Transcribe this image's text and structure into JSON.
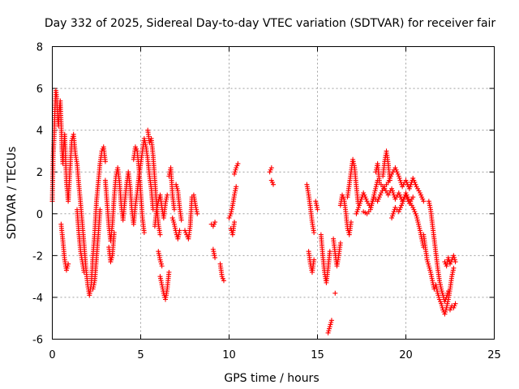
{
  "chart_data": {
    "type": "scatter",
    "title": "Day 332 of 2025, Sidereal Day-to-day VTEC variation (SDTVAR) for receiver fair",
    "xlabel": "GPS time / hours",
    "ylabel": "SDTVAR / TECUs",
    "xlim": [
      0,
      25
    ],
    "ylim": [
      -6,
      8
    ],
    "xticks": [
      "0",
      "5",
      "10",
      "15",
      "20",
      "25"
    ],
    "yticks": [
      "-6",
      "-4",
      "-2",
      "0",
      "2",
      "4",
      "6",
      "8"
    ],
    "grid": true,
    "marker": "+",
    "series": [
      {
        "name": "SDTVAR",
        "color": "#ff0000",
        "segments": [
          {
            "x": [
              0.0,
              0.05,
              0.1,
              0.15,
              0.2,
              0.25,
              0.3,
              0.35,
              0.4,
              0.45,
              0.5,
              0.55,
              0.6,
              0.65,
              0.7,
              0.75,
              0.8,
              0.9,
              1.0,
              1.1,
              1.2,
              1.3,
              1.4,
              1.5,
              1.6,
              1.7,
              1.8,
              1.9,
              2.0,
              2.1,
              2.2,
              2.3,
              2.4,
              2.5,
              2.6,
              2.7,
              2.8,
              2.9,
              3.0
            ],
            "y": [
              0.6,
              2.8,
              3.6,
              5.0,
              5.9,
              5.6,
              4.6,
              4.2,
              5.0,
              5.4,
              4.3,
              3.0,
              2.4,
              3.3,
              3.8,
              2.6,
              1.5,
              0.6,
              2.1,
              3.5,
              3.8,
              2.9,
              2.4,
              1.4,
              0.5,
              -0.5,
              -1.5,
              -2.6,
              -3.4,
              -3.9,
              -3.4,
              -2.0,
              -0.9,
              0.6,
              1.5,
              2.4,
              3.0,
              3.2,
              2.5
            ]
          },
          {
            "x": [
              0.5,
              0.6,
              0.7,
              0.8,
              0.9
            ],
            "y": [
              -0.5,
              -1.3,
              -2.2,
              -2.7,
              -2.4
            ]
          },
          {
            "x": [
              1.4,
              1.5,
              1.6,
              1.7,
              1.8
            ],
            "y": [
              0.2,
              -0.9,
              -1.8,
              -2.3,
              -2.8
            ]
          },
          {
            "x": [
              2.3,
              2.4,
              2.5,
              2.6,
              2.7
            ],
            "y": [
              -3.6,
              -3.2,
              -2.1,
              -1.0,
              0.2
            ]
          },
          {
            "x": [
              3.0,
              3.1,
              3.2,
              3.3,
              3.4,
              3.5,
              3.6,
              3.7,
              3.8,
              3.9,
              4.0,
              4.1,
              4.2,
              4.3,
              4.4,
              4.5,
              4.6,
              4.7,
              4.8,
              4.9,
              5.0,
              5.1,
              5.2,
              5.3,
              5.4,
              5.5,
              5.6,
              5.7
            ],
            "y": [
              1.6,
              0.5,
              -0.6,
              -1.3,
              -0.5,
              0.8,
              1.8,
              2.2,
              1.5,
              0.4,
              -0.3,
              0.6,
              1.4,
              2.0,
              1.3,
              0.2,
              -0.5,
              0.4,
              1.0,
              1.8,
              2.4,
              3.0,
              3.6,
              3.2,
              2.6,
              1.8,
              1.2,
              0.2
            ]
          },
          {
            "x": [
              3.2,
              3.3,
              3.4,
              3.5
            ],
            "y": [
              -1.6,
              -2.3,
              -2.0,
              -0.9
            ]
          },
          {
            "x": [
              4.6,
              4.7,
              4.8,
              4.9,
              5.0,
              5.1,
              5.2
            ],
            "y": [
              2.6,
              3.2,
              3.0,
              2.2,
              1.0,
              -0.2,
              -0.9
            ]
          },
          {
            "x": [
              5.4,
              5.5,
              5.6,
              5.7,
              5.8,
              5.9,
              6.0,
              6.1
            ],
            "y": [
              4.0,
              3.4,
              3.6,
              2.8,
              1.6,
              0.4,
              -0.5,
              -1.0
            ]
          },
          {
            "x": [
              5.8,
              5.9,
              6.0,
              6.1,
              6.2,
              6.3,
              6.4,
              6.5
            ],
            "y": [
              -0.6,
              0.2,
              0.6,
              0.9,
              0.3,
              -0.2,
              0.5,
              0.9
            ]
          },
          {
            "x": [
              6.0,
              6.1,
              6.2
            ],
            "y": [
              -1.8,
              -2.2,
              -2.5
            ]
          },
          {
            "x": [
              6.1,
              6.2,
              6.3,
              6.4,
              6.5,
              6.6
            ],
            "y": [
              -3.0,
              -3.4,
              -3.8,
              -4.1,
              -3.6,
              -2.8
            ]
          },
          {
            "x": [
              6.6,
              6.7,
              6.8,
              6.9
            ],
            "y": [
              1.8,
              2.2,
              0.9,
              0.2
            ]
          },
          {
            "x": [
              6.8,
              6.9,
              7.0,
              7.1,
              7.2
            ],
            "y": [
              -0.2,
              -0.5,
              -0.9,
              -1.2,
              -0.8
            ]
          },
          {
            "x": [
              7.0,
              7.1,
              7.2,
              7.3
            ],
            "y": [
              1.4,
              1.1,
              0.3,
              -0.3
            ]
          },
          {
            "x": [
              7.5,
              7.6,
              7.7,
              7.8,
              7.9
            ],
            "y": [
              -0.8,
              -1.0,
              -1.2,
              -0.6,
              0.8
            ]
          },
          {
            "x": [
              8.0,
              8.1,
              8.2
            ],
            "y": [
              0.9,
              0.4,
              0.0
            ]
          },
          {
            "x": [
              9.0,
              9.1,
              9.2
            ],
            "y": [
              -0.5,
              -0.6,
              -0.4
            ]
          },
          {
            "x": [
              9.1,
              9.2
            ],
            "y": [
              -1.7,
              -2.1
            ]
          },
          {
            "x": [
              9.5,
              9.6,
              9.7
            ],
            "y": [
              -2.4,
              -3.0,
              -3.2
            ]
          },
          {
            "x": [
              10.0,
              10.1,
              10.2,
              10.3,
              10.4
            ],
            "y": [
              -0.2,
              0.0,
              0.4,
              0.9,
              1.3
            ]
          },
          {
            "x": [
              10.1,
              10.2,
              10.3
            ],
            "y": [
              -0.7,
              -1.0,
              -0.4
            ]
          },
          {
            "x": [
              10.3,
              10.4,
              10.5
            ],
            "y": [
              1.9,
              2.2,
              2.4
            ]
          },
          {
            "x": [
              12.3,
              12.4
            ],
            "y": [
              2.0,
              2.2
            ]
          },
          {
            "x": [
              12.4,
              12.5
            ],
            "y": [
              1.6,
              1.4
            ]
          },
          {
            "x": [
              14.4,
              14.5,
              14.6,
              14.7,
              14.8
            ],
            "y": [
              1.4,
              0.9,
              0.3,
              -0.4,
              -0.9
            ]
          },
          {
            "x": [
              14.5,
              14.6,
              14.7,
              14.8
            ],
            "y": [
              -1.8,
              -2.4,
              -2.8,
              -2.2
            ]
          },
          {
            "x": [
              14.9,
              15.0
            ],
            "y": [
              0.6,
              0.2
            ]
          },
          {
            "x": [
              15.2,
              15.3,
              15.4,
              15.5,
              15.6,
              15.7
            ],
            "y": [
              -1.0,
              -2.0,
              -2.8,
              -3.3,
              -2.6,
              -1.8
            ]
          },
          {
            "x": [
              15.6,
              15.7,
              15.8
            ],
            "y": [
              -5.7,
              -5.4,
              -5.1
            ]
          },
          {
            "x": [
              15.9,
              16.0,
              16.1,
              16.2,
              16.3
            ],
            "y": [
              -1.2,
              -1.9,
              -2.5,
              -2.0,
              -1.4
            ]
          },
          {
            "x": [
              16.0
            ],
            "y": [
              -3.8
            ]
          },
          {
            "x": [
              16.3,
              16.4,
              16.5,
              16.6,
              16.7,
              16.8,
              16.9
            ],
            "y": [
              0.4,
              0.9,
              0.7,
              0.1,
              -0.7,
              -1.0,
              -0.4
            ]
          },
          {
            "x": [
              16.7,
              16.8,
              16.9,
              17.0,
              17.1,
              17.2,
              17.3
            ],
            "y": [
              0.8,
              1.4,
              2.0,
              2.6,
              2.2,
              1.3,
              0.5
            ]
          },
          {
            "x": [
              17.2,
              17.4,
              17.6,
              17.8,
              18.0,
              18.2,
              18.4,
              18.6,
              18.8,
              19.0,
              19.2,
              19.4,
              19.6,
              19.8,
              20.0,
              20.2,
              20.4,
              20.6,
              20.8,
              21.0
            ],
            "y": [
              0.0,
              0.5,
              1.0,
              0.6,
              0.3,
              0.8,
              0.6,
              1.0,
              1.3,
              1.5,
              1.9,
              2.2,
              1.8,
              1.3,
              1.6,
              1.2,
              1.7,
              1.3,
              1.0,
              0.6
            ]
          },
          {
            "x": [
              17.6,
              17.8,
              18.0,
              18.2,
              18.4,
              18.6,
              18.8,
              19.0,
              19.2,
              19.4,
              19.6,
              19.8,
              20.0,
              20.2,
              20.4
            ],
            "y": [
              0.1,
              0.0,
              0.2,
              0.9,
              1.6,
              1.4,
              1.2,
              0.9,
              1.2,
              0.7,
              1.0,
              0.6,
              0.9,
              0.5,
              0.8
            ]
          },
          {
            "x": [
              18.3,
              18.4,
              18.5
            ],
            "y": [
              2.0,
              2.4,
              1.6
            ]
          },
          {
            "x": [
              18.7,
              18.8,
              18.9,
              19.0,
              19.1
            ],
            "y": [
              1.8,
              2.5,
              3.0,
              2.4,
              1.6
            ]
          },
          {
            "x": [
              19.2,
              19.4,
              19.6,
              19.8,
              20.0,
              20.2,
              20.4,
              20.6,
              20.8,
              21.0
            ],
            "y": [
              -0.2,
              0.3,
              0.1,
              0.5,
              1.0,
              0.6,
              0.3,
              -0.1,
              -0.8,
              -1.6
            ]
          },
          {
            "x": [
              21.0,
              21.1,
              21.2,
              21.3,
              21.4,
              21.5,
              21.6,
              21.7,
              21.8,
              21.9,
              22.0,
              22.1,
              22.2,
              22.3,
              22.4,
              22.5,
              22.6,
              22.7
            ],
            "y": [
              -1.0,
              -1.6,
              -2.2,
              -2.5,
              -2.8,
              -3.2,
              -3.6,
              -3.4,
              -3.8,
              -4.1,
              -4.3,
              -4.6,
              -4.8,
              -4.5,
              -4.1,
              -3.6,
              -3.0,
              -2.6
            ]
          },
          {
            "x": [
              21.3,
              21.4,
              21.5,
              21.6,
              21.7,
              21.8,
              21.9,
              22.0,
              22.1,
              22.2,
              22.3,
              22.4
            ],
            "y": [
              0.6,
              0.2,
              -0.5,
              -1.2,
              -1.9,
              -2.6,
              -3.2,
              -3.6,
              -3.9,
              -4.2,
              -4.0,
              -3.7
            ]
          },
          {
            "x": [
              22.2,
              22.3,
              22.4,
              22.5,
              22.6,
              22.7,
              22.8
            ],
            "y": [
              -2.3,
              -2.5,
              -2.1,
              -2.4,
              -2.2,
              -2.0,
              -2.3
            ]
          },
          {
            "x": [
              22.5,
              22.6,
              22.7,
              22.8
            ],
            "y": [
              -4.6,
              -4.4,
              -4.5,
              -4.3
            ]
          }
        ]
      }
    ]
  }
}
